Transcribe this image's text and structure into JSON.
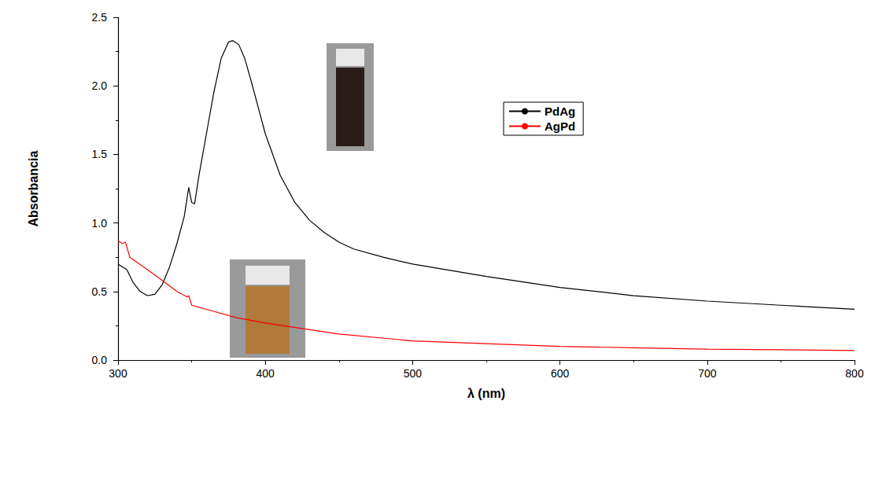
{
  "chart_data": {
    "type": "line",
    "x_label": "λ (nm)",
    "y_label": "Absorbancia",
    "xlim": [
      300,
      800
    ],
    "xticks": [
      300,
      400,
      500,
      600,
      700,
      800
    ],
    "ylim": [
      0,
      2.5
    ],
    "yticks": [
      {
        "value": 0,
        "label": "0.0"
      },
      0.5,
      {
        "value": 1,
        "label": "1.0"
      },
      1.5,
      {
        "value": 2,
        "label": "2.0"
      },
      2.5
    ],
    "grid": false,
    "legend": "upper right",
    "series": [
      {
        "name": "PdAg",
        "color": "#000000",
        "x": [
          300,
          303,
          306,
          310,
          315,
          320,
          325,
          330,
          335,
          340,
          345,
          348,
          350,
          352,
          355,
          360,
          365,
          370,
          375,
          378,
          382,
          386,
          390,
          395,
          400,
          410,
          420,
          430,
          440,
          450,
          460,
          480,
          500,
          550,
          600,
          650,
          700,
          750,
          800
        ],
        "values": [
          0.7,
          0.68,
          0.66,
          0.57,
          0.5,
          0.47,
          0.48,
          0.55,
          0.68,
          0.85,
          1.05,
          1.26,
          1.15,
          1.14,
          1.35,
          1.65,
          1.95,
          2.2,
          2.32,
          2.33,
          2.3,
          2.2,
          2.05,
          1.85,
          1.65,
          1.35,
          1.15,
          1.02,
          0.93,
          0.86,
          0.81,
          0.75,
          0.7,
          0.61,
          0.53,
          0.47,
          0.43,
          0.4,
          0.37
        ]
      },
      {
        "name": "AgPd",
        "color": "#ff0000",
        "x": [
          300,
          303,
          305,
          308,
          320,
          330,
          340,
          347,
          348,
          350,
          360,
          380,
          400,
          450,
          500,
          550,
          600,
          650,
          700,
          750,
          800
        ],
        "values": [
          0.87,
          0.85,
          0.86,
          0.75,
          0.66,
          0.58,
          0.5,
          0.46,
          0.47,
          0.4,
          0.37,
          0.31,
          0.27,
          0.19,
          0.14,
          0.12,
          0.1,
          0.09,
          0.08,
          0.075,
          0.07
        ]
      }
    ]
  }
}
